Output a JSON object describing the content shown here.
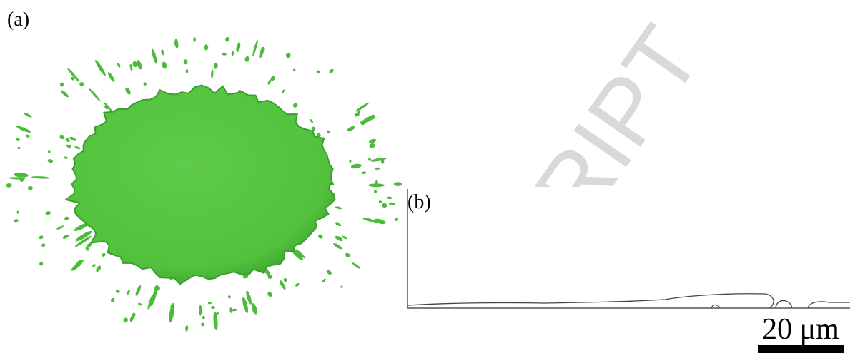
{
  "panels": [
    {
      "label": "(a)"
    },
    {
      "label": "(b)"
    }
  ],
  "scale_bar": {
    "label": "20 μm"
  },
  "watermark": "RIPT"
}
